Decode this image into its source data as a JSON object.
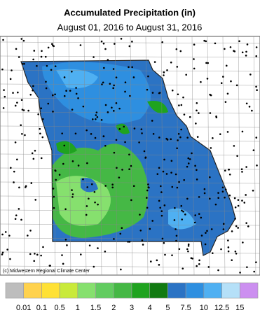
{
  "title": "Accumulated Precipitation (in)",
  "subtitle": "August 01, 2016 to August 31, 2016",
  "credit": "(c) Midwestern Regional Climate Center",
  "legend": {
    "colors": [
      "#bdbdbd",
      "#ffd24d",
      "#ffe135",
      "#c9ea3a",
      "#86e06e",
      "#62cc60",
      "#45b845",
      "#1fa31f",
      "#117a11",
      "#2b73c4",
      "#2e8fe0",
      "#4fb0f2",
      "#b5e0f8",
      "#cc8ff0"
    ],
    "labels": [
      "0.01",
      "0.1",
      "0.5",
      "1",
      "1.5",
      "2",
      "3",
      "4",
      "5",
      "7.5",
      "10",
      "12.5",
      "15"
    ]
  }
}
